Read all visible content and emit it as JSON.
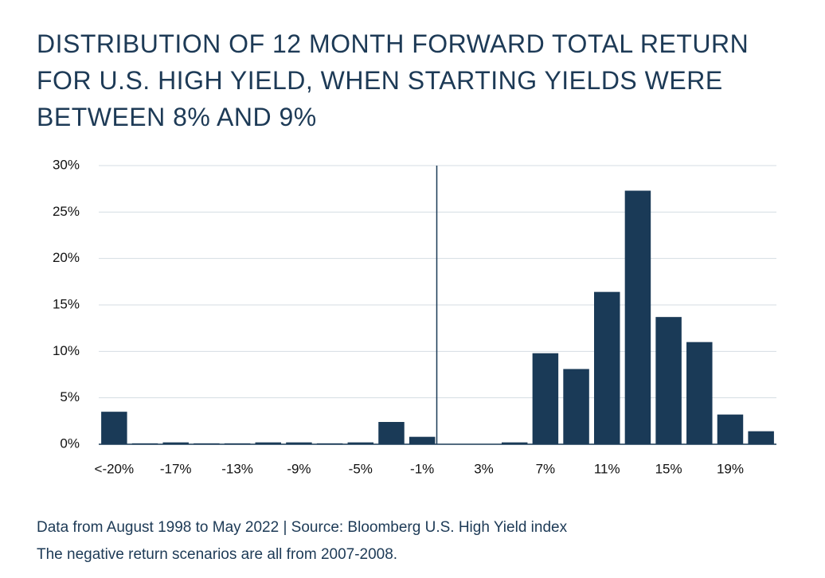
{
  "chart_data": {
    "type": "bar",
    "title": "DISTRIBUTION OF 12 MONTH FORWARD TOTAL RETURN FOR U.S. HIGH YIELD, WHEN STARTING YIELDS WERE BETWEEN 8% AND 9%",
    "categories": [
      "<-20%",
      null,
      "-17%",
      null,
      "-13%",
      null,
      "-9%",
      null,
      "-5%",
      null,
      "-1%",
      null,
      "3%",
      null,
      "7%",
      null,
      "11%",
      null,
      "15%",
      null,
      "19%",
      null
    ],
    "values": [
      3.5,
      0.1,
      0.2,
      0.1,
      0.1,
      0.2,
      0.2,
      0.1,
      0.2,
      2.4,
      0.8,
      0,
      0,
      0.2,
      9.8,
      8.1,
      16.4,
      27.3,
      13.7,
      11.0,
      3.2,
      1.4
    ],
    "color": "#1a3a57",
    "ylim": [
      0,
      30
    ],
    "yticks": [
      {
        "value": 0,
        "label": "0%"
      },
      {
        "value": 5,
        "label": "5%"
      },
      {
        "value": 10,
        "label": "10%"
      },
      {
        "value": 15,
        "label": "15%"
      },
      {
        "value": 20,
        "label": "20%"
      },
      {
        "value": 25,
        "label": "25%"
      },
      {
        "value": 30,
        "label": "30%"
      }
    ],
    "grid": true,
    "notes": [
      "Data from August 1998 to May 2022 | Source: Bloomberg U.S. High Yield index",
      "The negative return scenarios are all from 2007-2008."
    ]
  }
}
